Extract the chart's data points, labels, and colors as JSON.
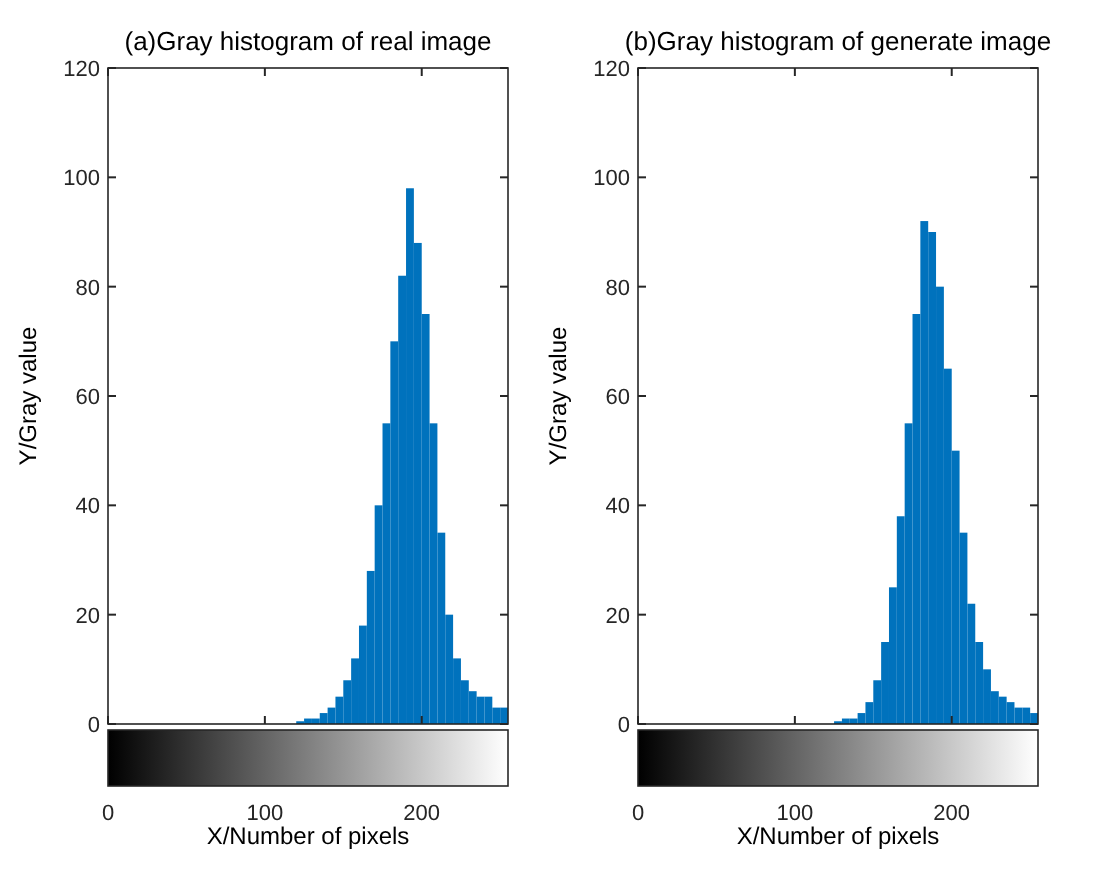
{
  "chart_data": [
    {
      "type": "histogram",
      "title": "(a)Gray histogram of real image",
      "xlabel": "X/Number of pixels",
      "ylabel": "Y/Gray value",
      "color": "#0072bd",
      "xlim": [
        0,
        255
      ],
      "xticks": [
        0,
        100,
        200
      ],
      "ylim": [
        0,
        120
      ],
      "yticks": [
        0,
        20,
        40,
        60,
        80,
        100,
        120
      ],
      "bins": [
        0,
        5,
        10,
        15,
        20,
        25,
        30,
        35,
        40,
        45,
        50,
        55,
        60,
        65,
        70,
        75,
        80,
        85,
        90,
        95,
        100,
        105,
        110,
        115,
        120,
        125,
        130,
        135,
        140,
        145,
        150,
        155,
        160,
        165,
        170,
        175,
        180,
        185,
        190,
        195,
        200,
        205,
        210,
        215,
        220,
        225,
        230,
        235,
        240,
        245,
        250,
        255
      ],
      "values": [
        0,
        0,
        0,
        0,
        0,
        0,
        0,
        0,
        0,
        0,
        0,
        0,
        0,
        0,
        0,
        0,
        0,
        0,
        0,
        0,
        0,
        0,
        0,
        0,
        0.5,
        1,
        1,
        2,
        3,
        5,
        8,
        12,
        18,
        28,
        40,
        55,
        70,
        82,
        98,
        88,
        75,
        55,
        35,
        20,
        12,
        8,
        6,
        5,
        5,
        3,
        3
      ]
    },
    {
      "type": "histogram",
      "title": "(b)Gray histogram of generate image",
      "xlabel": "X/Number of pixels",
      "ylabel": "Y/Gray value",
      "color": "#0072bd",
      "xlim": [
        0,
        255
      ],
      "xticks": [
        0,
        100,
        200
      ],
      "ylim": [
        0,
        120
      ],
      "yticks": [
        0,
        20,
        40,
        60,
        80,
        100,
        120
      ],
      "bins": [
        0,
        5,
        10,
        15,
        20,
        25,
        30,
        35,
        40,
        45,
        50,
        55,
        60,
        65,
        70,
        75,
        80,
        85,
        90,
        95,
        100,
        105,
        110,
        115,
        120,
        125,
        130,
        135,
        140,
        145,
        150,
        155,
        160,
        165,
        170,
        175,
        180,
        185,
        190,
        195,
        200,
        205,
        210,
        215,
        220,
        225,
        230,
        235,
        240,
        245,
        250,
        255
      ],
      "values": [
        0,
        0,
        0,
        0,
        0,
        0,
        0,
        0,
        0,
        0,
        0,
        0,
        0,
        0,
        0,
        0,
        0,
        0,
        0,
        0,
        0,
        0,
        0,
        0,
        0,
        0.5,
        1,
        1,
        2,
        4,
        8,
        15,
        25,
        38,
        55,
        75,
        92,
        90,
        80,
        65,
        50,
        35,
        22,
        15,
        10,
        6,
        5,
        4,
        3,
        3,
        2
      ]
    }
  ]
}
